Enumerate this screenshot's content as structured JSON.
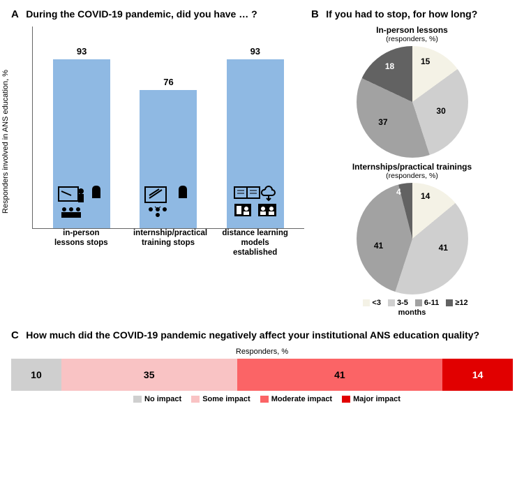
{
  "panelA": {
    "label": "A",
    "title": "During the COVID-19 pandemic, did you have … ?",
    "ylabel": "Responders involved in ANS education, %",
    "ylim": [
      0,
      100
    ],
    "bar_color": "#8fb9e3",
    "bars": [
      {
        "value": 93,
        "xlabel": "in-person\nlessons stops"
      },
      {
        "value": 76,
        "xlabel": "internship/practical\ntraining stops"
      },
      {
        "value": 93,
        "xlabel": "distance learning\nmodels established"
      }
    ]
  },
  "panelB": {
    "label": "B",
    "title": "If you had to stop, for how long?",
    "legend_items": [
      "<3",
      "3-5",
      "6-11",
      "≥12"
    ],
    "legend_axis": "months",
    "colors": {
      "<3": "#f4f2e6",
      "3-5": "#cfcfcf",
      "6-11": "#a2a2a2",
      ">=12": "#626262"
    },
    "pies": [
      {
        "title": "In-person lessons",
        "subtitle": "(responders, %)",
        "slices": [
          {
            "label": "<3",
            "value": 15,
            "color": "#f4f2e6"
          },
          {
            "label": "3-5",
            "value": 30,
            "color": "#cfcfcf"
          },
          {
            "label": "6-11",
            "value": 37,
            "color": "#a2a2a2"
          },
          {
            "label": ">=12",
            "value": 18,
            "color": "#626262"
          }
        ]
      },
      {
        "title": "Internships/practical trainings",
        "subtitle": "(responders, %)",
        "slices": [
          {
            "label": "<3",
            "value": 14,
            "color": "#f4f2e6"
          },
          {
            "label": "3-5",
            "value": 41,
            "color": "#cfcfcf"
          },
          {
            "label": "6-11",
            "value": 41,
            "color": "#a2a2a2"
          },
          {
            "label": ">=12",
            "value": 4,
            "color": "#626262"
          }
        ]
      }
    ]
  },
  "panelC": {
    "label": "C",
    "title": "How much did the COVID-19 pandemic negatively affect your institutional ANS education quality?",
    "subtitle": "Responders, %",
    "segments": [
      {
        "label": "No impact",
        "value": 10,
        "color": "#cfcfcf",
        "text_color": "#000000"
      },
      {
        "label": "Some impact",
        "value": 35,
        "color": "#f9c3c4",
        "text_color": "#000000"
      },
      {
        "label": "Moderate impact",
        "value": 41,
        "color": "#fb6466",
        "text_color": "#000000"
      },
      {
        "label": "Major impact",
        "value": 14,
        "color": "#e10000",
        "text_color": "#ffffff"
      }
    ]
  }
}
